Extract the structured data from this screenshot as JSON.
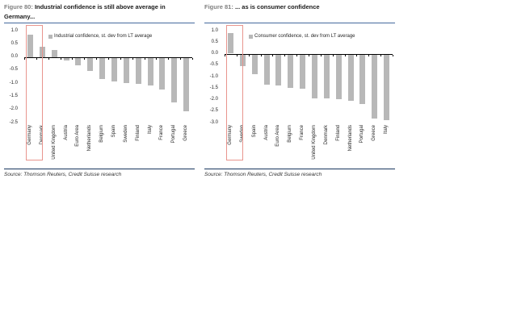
{
  "panels": [
    {
      "figure_prefix": "Figure 80:",
      "title": "Industrial confidence is still above average in Germany...",
      "source": "Source: Thomson Reuters, Credit Suisse research"
    },
    {
      "figure_prefix": "Figure 81:",
      "title": "... as is consumer confidence",
      "source": "Source: Thomson Reuters, Credit Suisse research"
    }
  ],
  "chart_data": [
    {
      "type": "bar",
      "title": "Figure 80: Industrial confidence is still above average in Germany...",
      "legend": "Industrial confidence, st. dev from LT average",
      "legend_position": "top-inside",
      "categories": [
        "Germany",
        "Denmark",
        "United Kingdom",
        "Austria",
        "Euro Area",
        "Netherlands",
        "Belgium",
        "Spain",
        "Sweden",
        "Finland",
        "Italy",
        "France",
        "Portugal",
        "Greece"
      ],
      "values": [
        0.85,
        0.4,
        0.25,
        -0.1,
        -0.3,
        -0.5,
        -0.8,
        -0.9,
        -0.95,
        -1.0,
        -1.05,
        -1.2,
        -1.7,
        -2.05
      ],
      "xlabel": "",
      "ylabel": "",
      "ylim": [
        -2.5,
        1.0
      ],
      "ytick_step": 0.5,
      "grid": false,
      "highlight_category": "Germany"
    },
    {
      "type": "bar",
      "title": "Figure 81: ... as is consumer confidence",
      "legend": "Consumer confidence, st. dev from LT average",
      "legend_position": "top-inside",
      "categories": [
        "Germany",
        "Sweden",
        "Spain",
        "Austria",
        "Euro Area",
        "Belgium",
        "France",
        "United Kingdom",
        "Denmark",
        "Finland",
        "Netherlands",
        "Portugal",
        "Greece",
        "Italy"
      ],
      "values": [
        0.9,
        -0.5,
        -0.85,
        -1.3,
        -1.35,
        -1.45,
        -1.5,
        -1.9,
        -1.9,
        -1.95,
        -2.0,
        -2.15,
        -2.8,
        -2.85
      ],
      "xlabel": "",
      "ylabel": "",
      "ylim": [
        -3.0,
        1.0
      ],
      "ytick_step": 0.5,
      "grid": false,
      "highlight_category": "Germany"
    }
  ],
  "colors": {
    "bar": "#b8b8b8",
    "highlight_box": "#e8958e",
    "title_rule": "#44699d",
    "source_rule": "#17365d",
    "figure_prefix": "#808080",
    "axis": "#000000"
  }
}
